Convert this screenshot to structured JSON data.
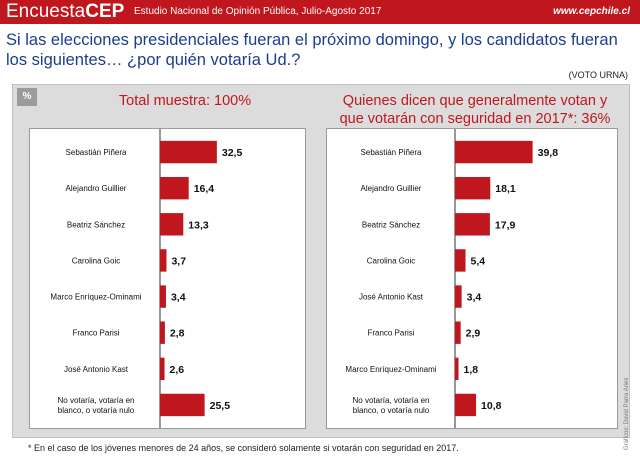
{
  "header": {
    "brand_part1": "Encuesta",
    "brand_part2": "CEP",
    "subtitle": "Estudio Nacional de Opinión Pública, Julio-Agosto 2017",
    "site": "www.cepchile.cl"
  },
  "question": "Si las elecciones presidenciales fueran el próximo domingo, y los candidatos fueran los siguientes… ¿por quién votaría Ud.?",
  "voto_note": "(VOTO URNA)",
  "percent_badge": "%",
  "footnote": "* En el caso de los jóvenes menores de 24 años, se consideró solamente si votarán con seguridad en 2017.",
  "credit": "Gráficos: David Parra Aries",
  "colors": {
    "bar": "#c0171e",
    "accent": "#c0171e",
    "title": "#1b3d8f"
  },
  "chart_data": [
    {
      "type": "bar",
      "orientation": "horizontal",
      "title": "Total muestra: 100%",
      "categories": [
        "Sebastián Piñera",
        "Alejandro Guillier",
        "Beatriz Sánchez",
        "Carolina Goic",
        "Marco Enríquez-Ominami",
        "Franco Parisi",
        "José Antonio Kast",
        "No votaría, votaría en blanco, o votaría nulo"
      ],
      "values": [
        32.5,
        16.4,
        13.3,
        3.7,
        3.4,
        2.8,
        2.6,
        25.5
      ],
      "labels": [
        "32,5",
        "16,4",
        "13,3",
        "3,7",
        "3,4",
        "2,8",
        "2,6",
        "25,5"
      ]
    },
    {
      "type": "bar",
      "orientation": "horizontal",
      "title": "Quienes dicen que generalmente votan y que votarán con seguridad en 2017*: 36%",
      "categories": [
        "Sebastián Piñera",
        "Alejandro Guillier",
        "Beatriz Sánchez",
        "Carolina Goic",
        "José Antonio Kast",
        "Franco Parisi",
        "Marco Enríquez-Ominami",
        "No votaría, votaría en blanco, o votaría nulo"
      ],
      "values": [
        39.8,
        18.1,
        17.9,
        5.4,
        3.4,
        2.9,
        1.8,
        10.8
      ],
      "labels": [
        "39,8",
        "18,1",
        "17,9",
        "5,4",
        "3,4",
        "2,9",
        "1,8",
        "10,8"
      ]
    }
  ]
}
